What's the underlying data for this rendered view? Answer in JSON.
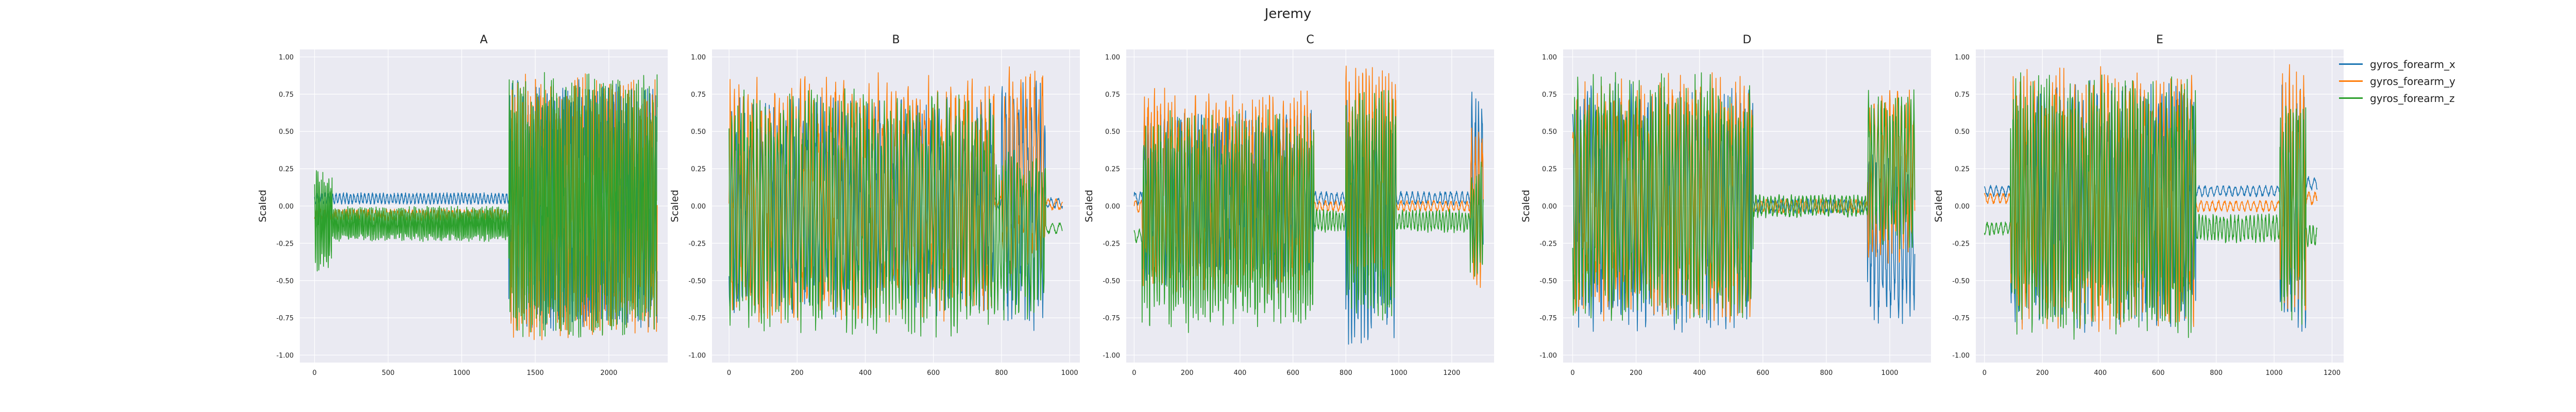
{
  "figure": {
    "suptitle": "Jeremy"
  },
  "colors": {
    "panel_bg": "#eaeaf2",
    "grid": "#ffffff",
    "text": "#222222"
  },
  "legend": {
    "placement": "right",
    "items": [
      {
        "label": "gyros_forearm_x",
        "color": "#1f77b4"
      },
      {
        "label": "gyros_forearm_y",
        "color": "#ff7f0e"
      },
      {
        "label": "gyros_forearm_z",
        "color": "#2ca02c"
      }
    ]
  },
  "chart_data": [
    {
      "type": "line",
      "title": "A",
      "ylabel": "Scaled",
      "xlabel": "",
      "xlim": [
        -100,
        2400
      ],
      "ylim": [
        -1.05,
        1.05
      ],
      "grid": true,
      "xticks": [
        0,
        500,
        1000,
        1500,
        2000
      ],
      "yticks": [
        -1.0,
        -0.75,
        -0.5,
        -0.25,
        0.0,
        0.25,
        0.5,
        0.75,
        1.0
      ],
      "n": 2330,
      "series": [
        {
          "name": "gyros_forearm_x",
          "color": "#1f77b4",
          "segments": [
            {
              "x0": 0,
              "x1": 1320,
              "y": 0.05,
              "amp": 0.04,
              "freq": 0.25
            },
            {
              "x0": 1320,
              "x1": 2330,
              "y": 0.0,
              "amp": 0.85,
              "freq": 0.35
            }
          ]
        },
        {
          "name": "gyros_forearm_y",
          "color": "#ff7f0e",
          "segments": [
            {
              "x0": 0,
              "x1": 1330,
              "y": -0.06,
              "amp": 0.04,
              "freq": 0.25
            },
            {
              "x0": 1330,
              "x1": 2330,
              "y": 0.0,
              "amp": 0.9,
              "freq": 0.35
            }
          ]
        },
        {
          "name": "gyros_forearm_z",
          "color": "#2ca02c",
          "segments": [
            {
              "x0": 0,
              "x1": 120,
              "y": -0.1,
              "amp": 0.35,
              "freq": 0.6
            },
            {
              "x0": 120,
              "x1": 1320,
              "y": -0.12,
              "amp": 0.12,
              "freq": 0.6
            },
            {
              "x0": 1320,
              "x1": 2330,
              "y": 0.0,
              "amp": 0.9,
              "freq": 0.5
            }
          ]
        }
      ]
    },
    {
      "type": "line",
      "title": "B",
      "ylabel": "Scaled",
      "xlabel": "",
      "xlim": [
        -50,
        1030
      ],
      "ylim": [
        -1.05,
        1.05
      ],
      "grid": true,
      "xticks": [
        0,
        200,
        400,
        600,
        800,
        1000
      ],
      "yticks": [
        -1.0,
        -0.75,
        -0.5,
        -0.25,
        0.0,
        0.25,
        0.5,
        0.75,
        1.0
      ],
      "n": 980,
      "series": [
        {
          "name": "gyros_forearm_x",
          "color": "#1f77b4",
          "segments": [
            {
              "x0": 0,
              "x1": 780,
              "y": 0.0,
              "amp": 0.75,
              "freq": 0.5
            },
            {
              "x0": 780,
              "x1": 800,
              "y": 0.02,
              "amp": 0.05,
              "freq": 0.3
            },
            {
              "x0": 800,
              "x1": 930,
              "y": 0.0,
              "amp": 0.85,
              "freq": 0.5
            },
            {
              "x0": 930,
              "x1": 980,
              "y": 0.02,
              "amp": 0.04,
              "freq": 0.3
            }
          ]
        },
        {
          "name": "gyros_forearm_y",
          "color": "#ff7f0e",
          "segments": [
            {
              "x0": 0,
              "x1": 780,
              "y": 0.05,
              "amp": 0.85,
              "freq": 0.5
            },
            {
              "x0": 780,
              "x1": 800,
              "y": 0.02,
              "amp": 0.05,
              "freq": 0.3
            },
            {
              "x0": 800,
              "x1": 930,
              "y": 0.2,
              "amp": 0.75,
              "freq": 0.5
            },
            {
              "x0": 930,
              "x1": 980,
              "y": 0.01,
              "amp": 0.04,
              "freq": 0.3
            }
          ]
        },
        {
          "name": "gyros_forearm_z",
          "color": "#2ca02c",
          "segments": [
            {
              "x0": 0,
              "x1": 780,
              "y": -0.05,
              "amp": 0.85,
              "freq": 0.7
            },
            {
              "x0": 780,
              "x1": 930,
              "y": -0.2,
              "amp": 0.6,
              "freq": 0.7
            },
            {
              "x0": 930,
              "x1": 980,
              "y": -0.15,
              "amp": 0.04,
              "freq": 0.3
            }
          ]
        }
      ]
    },
    {
      "type": "line",
      "title": "C",
      "ylabel": "Scaled",
      "xlabel": "",
      "xlim": [
        -30,
        1360
      ],
      "ylim": [
        -1.05,
        1.05
      ],
      "grid": true,
      "xticks": [
        0,
        200,
        400,
        600,
        800,
        1000,
        1200
      ],
      "yticks": [
        -1.0,
        -0.75,
        -0.5,
        -0.25,
        0.0,
        0.25,
        0.5,
        0.75,
        1.0
      ],
      "n": 1320,
      "series": [
        {
          "name": "gyros_forearm_x",
          "color": "#1f77b4",
          "segments": [
            {
              "x0": 0,
              "x1": 30,
              "y": 0.05,
              "amp": 0.05,
              "freq": 0.3
            },
            {
              "x0": 30,
              "x1": 680,
              "y": 0.05,
              "amp": 0.6,
              "freq": 0.5
            },
            {
              "x0": 680,
              "x1": 800,
              "y": 0.05,
              "amp": 0.05,
              "freq": 0.3
            },
            {
              "x0": 800,
              "x1": 990,
              "y": -0.1,
              "amp": 0.85,
              "freq": 0.5
            },
            {
              "x0": 990,
              "x1": 1270,
              "y": 0.05,
              "amp": 0.05,
              "freq": 0.3
            },
            {
              "x0": 1270,
              "x1": 1320,
              "y": 0.2,
              "amp": 0.6,
              "freq": 0.5
            }
          ]
        },
        {
          "name": "gyros_forearm_y",
          "color": "#ff7f0e",
          "segments": [
            {
              "x0": 0,
              "x1": 30,
              "y": 0.0,
              "amp": 0.05,
              "freq": 0.3
            },
            {
              "x0": 30,
              "x1": 680,
              "y": 0.1,
              "amp": 0.7,
              "freq": 0.5
            },
            {
              "x0": 680,
              "x1": 800,
              "y": 0.0,
              "amp": 0.04,
              "freq": 0.3
            },
            {
              "x0": 800,
              "x1": 990,
              "y": 0.2,
              "amp": 0.75,
              "freq": 0.5
            },
            {
              "x0": 990,
              "x1": 1270,
              "y": 0.0,
              "amp": 0.04,
              "freq": 0.3
            },
            {
              "x0": 1270,
              "x1": 1320,
              "y": 0.0,
              "amp": 0.6,
              "freq": 0.5
            }
          ]
        },
        {
          "name": "gyros_forearm_z",
          "color": "#2ca02c",
          "segments": [
            {
              "x0": 0,
              "x1": 30,
              "y": -0.2,
              "amp": 0.05,
              "freq": 0.3
            },
            {
              "x0": 30,
              "x1": 680,
              "y": -0.1,
              "amp": 0.75,
              "freq": 0.7
            },
            {
              "x0": 680,
              "x1": 800,
              "y": -0.1,
              "amp": 0.08,
              "freq": 0.5
            },
            {
              "x0": 800,
              "x1": 990,
              "y": 0.0,
              "amp": 0.8,
              "freq": 0.7
            },
            {
              "x0": 990,
              "x1": 1270,
              "y": -0.1,
              "amp": 0.08,
              "freq": 0.5
            },
            {
              "x0": 1270,
              "x1": 1320,
              "y": -0.1,
              "amp": 0.4,
              "freq": 0.7
            }
          ]
        }
      ]
    },
    {
      "type": "line",
      "title": "D",
      "ylabel": "Scaled",
      "xlabel": "",
      "xlim": [
        -30,
        1130
      ],
      "ylim": [
        -1.05,
        1.05
      ],
      "grid": true,
      "xticks": [
        0,
        200,
        400,
        600,
        800,
        1000
      ],
      "yticks": [
        -1.0,
        -0.75,
        -0.5,
        -0.25,
        0.0,
        0.25,
        0.5,
        0.75,
        1.0
      ],
      "n": 1080,
      "series": [
        {
          "name": "gyros_forearm_x",
          "color": "#1f77b4",
          "segments": [
            {
              "x0": 0,
              "x1": 570,
              "y": 0.0,
              "amp": 0.85,
              "freq": 0.5
            },
            {
              "x0": 570,
              "x1": 930,
              "y": 0.0,
              "amp": 0.05,
              "freq": 0.4
            },
            {
              "x0": 930,
              "x1": 1080,
              "y": -0.2,
              "amp": 0.6,
              "freq": 0.5
            }
          ]
        },
        {
          "name": "gyros_forearm_y",
          "color": "#ff7f0e",
          "segments": [
            {
              "x0": 0,
              "x1": 570,
              "y": 0.05,
              "amp": 0.85,
              "freq": 0.5
            },
            {
              "x0": 570,
              "x1": 930,
              "y": 0.0,
              "amp": 0.05,
              "freq": 0.4
            },
            {
              "x0": 930,
              "x1": 1080,
              "y": 0.2,
              "amp": 0.6,
              "freq": 0.5
            }
          ]
        },
        {
          "name": "gyros_forearm_z",
          "color": "#2ca02c",
          "segments": [
            {
              "x0": 0,
              "x1": 570,
              "y": 0.05,
              "amp": 0.85,
              "freq": 0.7
            },
            {
              "x0": 570,
              "x1": 930,
              "y": 0.0,
              "amp": 0.08,
              "freq": 0.5
            },
            {
              "x0": 930,
              "x1": 1080,
              "y": 0.25,
              "amp": 0.55,
              "freq": 0.7
            }
          ]
        }
      ]
    },
    {
      "type": "line",
      "title": "E",
      "ylabel": "Scaled",
      "xlabel": "",
      "xlim": [
        -30,
        1240
      ],
      "ylim": [
        -1.05,
        1.05
      ],
      "grid": true,
      "xticks": [
        0,
        200,
        400,
        600,
        800,
        1000,
        1200
      ],
      "yticks": [
        -1.0,
        -0.75,
        -0.5,
        -0.25,
        0.0,
        0.25,
        0.5,
        0.75,
        1.0
      ],
      "n": 1150,
      "series": [
        {
          "name": "gyros_forearm_x",
          "color": "#1f77b4",
          "segments": [
            {
              "x0": 0,
              "x1": 90,
              "y": 0.1,
              "amp": 0.04,
              "freq": 0.3
            },
            {
              "x0": 90,
              "x1": 730,
              "y": 0.0,
              "amp": 0.85,
              "freq": 0.5
            },
            {
              "x0": 730,
              "x1": 1020,
              "y": 0.1,
              "amp": 0.04,
              "freq": 0.3
            },
            {
              "x0": 1020,
              "x1": 1110,
              "y": 0.0,
              "amp": 0.9,
              "freq": 0.5
            },
            {
              "x0": 1110,
              "x1": 1150,
              "y": 0.15,
              "amp": 0.05,
              "freq": 0.3
            }
          ]
        },
        {
          "name": "gyros_forearm_y",
          "color": "#ff7f0e",
          "segments": [
            {
              "x0": 0,
              "x1": 90,
              "y": 0.05,
              "amp": 0.04,
              "freq": 0.3
            },
            {
              "x0": 90,
              "x1": 730,
              "y": 0.05,
              "amp": 0.9,
              "freq": 0.5
            },
            {
              "x0": 730,
              "x1": 1020,
              "y": 0.0,
              "amp": 0.04,
              "freq": 0.3
            },
            {
              "x0": 1020,
              "x1": 1110,
              "y": 0.1,
              "amp": 0.85,
              "freq": 0.5
            },
            {
              "x0": 1110,
              "x1": 1150,
              "y": 0.05,
              "amp": 0.05,
              "freq": 0.3
            }
          ]
        },
        {
          "name": "gyros_forearm_z",
          "color": "#2ca02c",
          "segments": [
            {
              "x0": 0,
              "x1": 90,
              "y": -0.15,
              "amp": 0.05,
              "freq": 0.4
            },
            {
              "x0": 90,
              "x1": 730,
              "y": 0.0,
              "amp": 0.9,
              "freq": 0.7
            },
            {
              "x0": 730,
              "x1": 1020,
              "y": -0.15,
              "amp": 0.1,
              "freq": 0.5
            },
            {
              "x0": 1020,
              "x1": 1110,
              "y": 0.0,
              "amp": 0.8,
              "freq": 0.7
            },
            {
              "x0": 1110,
              "x1": 1150,
              "y": -0.2,
              "amp": 0.08,
              "freq": 0.5
            }
          ]
        }
      ]
    }
  ]
}
